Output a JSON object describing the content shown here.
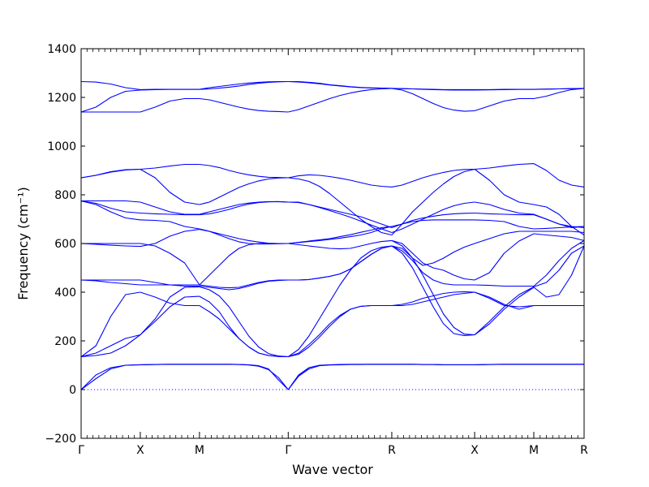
{
  "chart_data": {
    "type": "line",
    "xlabel": "Wave vector",
    "ylabel": "Frequency (cm⁻¹)",
    "ylim": [
      -200,
      1400
    ],
    "yticks": [
      -200,
      0,
      200,
      400,
      600,
      800,
      1000,
      1200,
      1400
    ],
    "x_ticks": [
      "Γ",
      "X",
      "M",
      "Γ",
      "R",
      "X",
      "M",
      "R"
    ],
    "x_tick_positions": [
      0,
      1,
      2,
      3.5,
      5.25,
      6.65,
      7.65,
      8.5
    ],
    "grid": false,
    "line_color": "#0000ff",
    "zero_line": {
      "y": 0,
      "style": "dotted",
      "color": "#0000ff"
    },
    "segments": [
      {
        "from": "Γ",
        "to": "X",
        "bands": [
          [
            0,
            60,
            90,
            100,
            102
          ],
          [
            0,
            45,
            85,
            100,
            102
          ],
          [
            135,
            140,
            150,
            180,
            225
          ],
          [
            135,
            180,
            300,
            390,
            400
          ],
          [
            135,
            150,
            180,
            210,
            225
          ],
          [
            450,
            450,
            450,
            450,
            450
          ],
          [
            450,
            447,
            440,
            435,
            430
          ],
          [
            600,
            600,
            600,
            600,
            600
          ],
          [
            600,
            597,
            593,
            590,
            588
          ],
          [
            775,
            760,
            730,
            705,
            697
          ],
          [
            775,
            775,
            775,
            775,
            770
          ],
          [
            775,
            765,
            745,
            730,
            725
          ],
          [
            870,
            880,
            895,
            903,
            905
          ],
          [
            870,
            880,
            893,
            902,
            905
          ],
          [
            1140,
            1140,
            1140,
            1140,
            1140
          ],
          [
            1140,
            1160,
            1200,
            1225,
            1230
          ],
          [
            1265,
            1263,
            1255,
            1240,
            1232
          ]
        ]
      },
      {
        "from": "X",
        "to": "M",
        "bands": [
          [
            102,
            103,
            104,
            104,
            104
          ],
          [
            102,
            103,
            104,
            104,
            104
          ],
          [
            225,
            280,
            340,
            380,
            383
          ],
          [
            400,
            380,
            355,
            345,
            345
          ],
          [
            225,
            290,
            380,
            420,
            422
          ],
          [
            450,
            440,
            430,
            425,
            425
          ],
          [
            430,
            430,
            430,
            430,
            430
          ],
          [
            600,
            590,
            560,
            520,
            430
          ],
          [
            588,
            600,
            630,
            650,
            658
          ],
          [
            697,
            695,
            690,
            670,
            660
          ],
          [
            770,
            750,
            730,
            720,
            720
          ],
          [
            725,
            722,
            720,
            718,
            718
          ],
          [
            905,
            910,
            918,
            925,
            925
          ],
          [
            905,
            870,
            810,
            770,
            760
          ],
          [
            1140,
            1160,
            1185,
            1195,
            1195
          ],
          [
            1230,
            1232,
            1233,
            1233,
            1233
          ],
          [
            1232,
            1233,
            1233,
            1233,
            1233
          ]
        ]
      },
      {
        "from": "M",
        "to": "Γ",
        "bands": [
          [
            104,
            104,
            104,
            104,
            103,
            102,
            98,
            85,
            40,
            0
          ],
          [
            104,
            104,
            104,
            104,
            103,
            101,
            96,
            82,
            50,
            0
          ],
          [
            383,
            360,
            320,
            260,
            210,
            175,
            150,
            140,
            136,
            135
          ],
          [
            345,
            320,
            290,
            250,
            210,
            175,
            150,
            140,
            136,
            135
          ],
          [
            422,
            410,
            385,
            340,
            280,
            220,
            175,
            148,
            138,
            135
          ],
          [
            425,
            420,
            415,
            410,
            415,
            425,
            437,
            445,
            448,
            450
          ],
          [
            430,
            425,
            420,
            418,
            420,
            430,
            440,
            447,
            450,
            450
          ],
          [
            430,
            470,
            510,
            550,
            580,
            595,
            600,
            600,
            600,
            600
          ],
          [
            658,
            650,
            635,
            620,
            607,
            600,
            598,
            598,
            599,
            600
          ],
          [
            660,
            650,
            640,
            630,
            620,
            612,
            606,
            601,
            600,
            600
          ],
          [
            720,
            730,
            740,
            750,
            760,
            766,
            770,
            772,
            772,
            770
          ],
          [
            718,
            722,
            730,
            740,
            752,
            762,
            768,
            771,
            772,
            770
          ],
          [
            925,
            920,
            912,
            900,
            890,
            882,
            876,
            872,
            871,
            870
          ],
          [
            760,
            770,
            790,
            810,
            830,
            845,
            857,
            865,
            869,
            870
          ],
          [
            1195,
            1190,
            1180,
            1170,
            1160,
            1152,
            1146,
            1143,
            1142,
            1140
          ],
          [
            1233,
            1240,
            1245,
            1250,
            1255,
            1259,
            1262,
            1264,
            1265,
            1265
          ],
          [
            1233,
            1235,
            1238,
            1242,
            1247,
            1253,
            1258,
            1262,
            1264,
            1265
          ]
        ]
      },
      {
        "from": "Γ",
        "to": "R",
        "bands": [
          [
            0,
            60,
            90,
            100,
            102,
            103,
            104,
            104,
            104,
            104,
            104
          ],
          [
            0,
            55,
            85,
            98,
            101,
            102,
            103,
            103,
            104,
            104,
            104
          ],
          [
            135,
            145,
            175,
            215,
            260,
            300,
            330,
            342,
            345,
            345,
            345
          ],
          [
            135,
            150,
            185,
            225,
            270,
            305,
            330,
            342,
            345,
            345,
            345
          ],
          [
            135,
            165,
            220,
            290,
            360,
            430,
            490,
            540,
            570,
            585,
            590
          ],
          [
            450,
            450,
            452,
            458,
            465,
            475,
            495,
            525,
            555,
            580,
            590
          ],
          [
            450,
            450,
            452,
            458,
            465,
            475,
            495,
            525,
            555,
            580,
            590
          ],
          [
            600,
            595,
            590,
            585,
            580,
            578,
            580,
            590,
            600,
            608,
            612
          ],
          [
            600,
            604,
            608,
            612,
            617,
            622,
            628,
            635,
            645,
            660,
            670
          ],
          [
            600,
            605,
            610,
            615,
            620,
            628,
            636,
            646,
            655,
            665,
            670
          ],
          [
            770,
            770,
            760,
            750,
            740,
            730,
            720,
            710,
            695,
            680,
            665
          ],
          [
            770,
            768,
            760,
            748,
            735,
            722,
            708,
            692,
            676,
            660,
            645
          ],
          [
            870,
            878,
            882,
            880,
            875,
            868,
            860,
            850,
            840,
            835,
            832
          ],
          [
            870,
            865,
            855,
            835,
            805,
            770,
            735,
            700,
            670,
            645,
            635
          ],
          [
            1140,
            1150,
            1165,
            1180,
            1195,
            1208,
            1218,
            1226,
            1232,
            1235,
            1237
          ],
          [
            1265,
            1265,
            1262,
            1258,
            1252,
            1248,
            1244,
            1241,
            1239,
            1238,
            1237
          ],
          [
            1265,
            1263,
            1260,
            1256,
            1251,
            1247,
            1243,
            1240,
            1239,
            1238,
            1237
          ]
        ]
      },
      {
        "from": "R",
        "to": "X",
        "bands": [
          [
            104,
            104,
            104,
            103,
            103,
            102,
            102,
            102,
            102
          ],
          [
            104,
            104,
            104,
            103,
            103,
            102,
            102,
            102,
            102
          ],
          [
            345,
            350,
            360,
            375,
            385,
            395,
            400,
            402,
            400
          ],
          [
            345,
            345,
            350,
            360,
            370,
            380,
            390,
            395,
            400
          ],
          [
            590,
            560,
            500,
            420,
            340,
            270,
            230,
            222,
            225
          ],
          [
            590,
            580,
            540,
            470,
            390,
            310,
            255,
            228,
            225
          ],
          [
            590,
            570,
            530,
            480,
            450,
            435,
            430,
            430,
            430
          ],
          [
            612,
            600,
            560,
            520,
            500,
            490,
            470,
            455,
            450
          ],
          [
            612,
            590,
            540,
            510,
            520,
            540,
            565,
            585,
            600
          ],
          [
            670,
            680,
            690,
            695,
            697,
            697,
            697,
            697,
            697
          ],
          [
            645,
            660,
            680,
            700,
            720,
            740,
            755,
            765,
            770
          ],
          [
            665,
            680,
            695,
            705,
            712,
            718,
            722,
            724,
            725
          ],
          [
            832,
            840,
            855,
            870,
            882,
            892,
            900,
            904,
            905
          ],
          [
            635,
            680,
            730,
            770,
            810,
            845,
            875,
            895,
            905
          ],
          [
            1237,
            1230,
            1215,
            1195,
            1175,
            1158,
            1148,
            1143,
            1145
          ],
          [
            1237,
            1236,
            1235,
            1233,
            1232,
            1231,
            1230,
            1230,
            1230
          ],
          [
            1237,
            1236,
            1235,
            1234,
            1233,
            1232,
            1232,
            1232,
            1232
          ]
        ]
      },
      {
        "from": "X",
        "to": "M",
        "bands": [
          [
            102,
            103,
            104,
            104,
            104
          ],
          [
            102,
            103,
            104,
            104,
            104
          ],
          [
            400,
            380,
            350,
            330,
            345
          ],
          [
            400,
            375,
            345,
            340,
            345
          ],
          [
            225,
            280,
            340,
            390,
            422
          ],
          [
            225,
            270,
            330,
            380,
            420
          ],
          [
            430,
            428,
            425,
            425,
            425
          ],
          [
            450,
            480,
            560,
            610,
            640
          ],
          [
            600,
            620,
            640,
            650,
            650
          ],
          [
            697,
            695,
            690,
            670,
            660
          ],
          [
            770,
            760,
            740,
            725,
            720
          ],
          [
            725,
            722,
            720,
            718,
            718
          ],
          [
            905,
            910,
            918,
            925,
            928
          ],
          [
            905,
            860,
            800,
            770,
            760
          ],
          [
            1145,
            1165,
            1185,
            1195,
            1195
          ],
          [
            1230,
            1231,
            1232,
            1233,
            1233
          ],
          [
            1232,
            1232,
            1233,
            1233,
            1233
          ]
        ]
      },
      {
        "from": "M",
        "to": "R",
        "bands": [
          [
            104,
            104,
            104,
            104,
            104
          ],
          [
            104,
            104,
            104,
            104,
            104
          ],
          [
            345,
            345,
            345,
            345,
            345
          ],
          [
            345,
            345,
            345,
            345,
            345
          ],
          [
            422,
            440,
            490,
            560,
            590
          ],
          [
            420,
            380,
            390,
            470,
            590
          ],
          [
            425,
            470,
            530,
            580,
            612
          ],
          [
            640,
            635,
            630,
            625,
            612
          ],
          [
            650,
            650,
            650,
            650,
            645
          ],
          [
            660,
            662,
            665,
            668,
            670
          ],
          [
            720,
            700,
            680,
            670,
            665
          ],
          [
            718,
            700,
            680,
            665,
            670
          ],
          [
            928,
            900,
            860,
            840,
            832
          ],
          [
            760,
            750,
            720,
            670,
            635
          ],
          [
            1195,
            1205,
            1220,
            1232,
            1237
          ],
          [
            1233,
            1234,
            1235,
            1236,
            1237
          ],
          [
            1233,
            1234,
            1235,
            1236,
            1237
          ]
        ]
      }
    ]
  }
}
